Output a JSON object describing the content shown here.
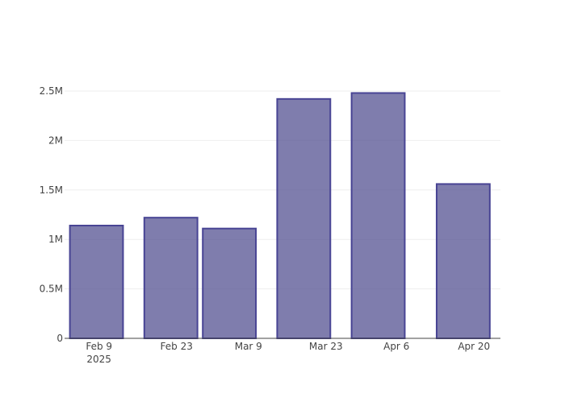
{
  "chart_data": {
    "type": "bar",
    "title": "",
    "xlabel": "",
    "ylabel": "",
    "colors": {
      "bar_fill": "#5f5c99",
      "bar_stroke": "#484494",
      "axis": "#444444",
      "grid": "#eeeeee"
    },
    "x_axis": {
      "type": "date",
      "range": [
        "2025-02-05",
        "2025-04-28"
      ],
      "ticks": [
        {
          "date": "2025-02-09",
          "label": "Feb 9",
          "sublabel": "2025"
        },
        {
          "date": "2025-02-23",
          "label": "Feb 23"
        },
        {
          "date": "2025-03-09",
          "label": "Mar 9"
        },
        {
          "date": "2025-03-23",
          "label": "Mar 23"
        },
        {
          "date": "2025-04-06",
          "label": "Apr 6"
        },
        {
          "date": "2025-04-20",
          "label": "Apr 20"
        }
      ]
    },
    "y_axis": {
      "range": [
        0,
        2500000
      ],
      "ticks": [
        {
          "value": 0,
          "label": "0"
        },
        {
          "value": 500000,
          "label": "0.5M"
        },
        {
          "value": 1000000,
          "label": "1M"
        },
        {
          "value": 1500000,
          "label": "1.5M"
        },
        {
          "value": 2000000,
          "label": "2M"
        },
        {
          "value": 2500000,
          "label": "2.5M"
        }
      ]
    },
    "grid": true,
    "legend": "none",
    "bars": [
      {
        "start": "2025-02-06",
        "end": "2025-02-16",
        "value": 1140000
      },
      {
        "start": "2025-02-20",
        "end": "2025-03-02",
        "value": 1220000
      },
      {
        "start": "2025-03-03",
        "end": "2025-03-13",
        "value": 1110000
      },
      {
        "start": "2025-03-17",
        "end": "2025-03-27",
        "value": 2420000
      },
      {
        "start": "2025-03-31",
        "end": "2025-04-10",
        "value": 2480000
      },
      {
        "start": "2025-04-16",
        "end": "2025-04-26",
        "value": 1560000
      }
    ]
  }
}
